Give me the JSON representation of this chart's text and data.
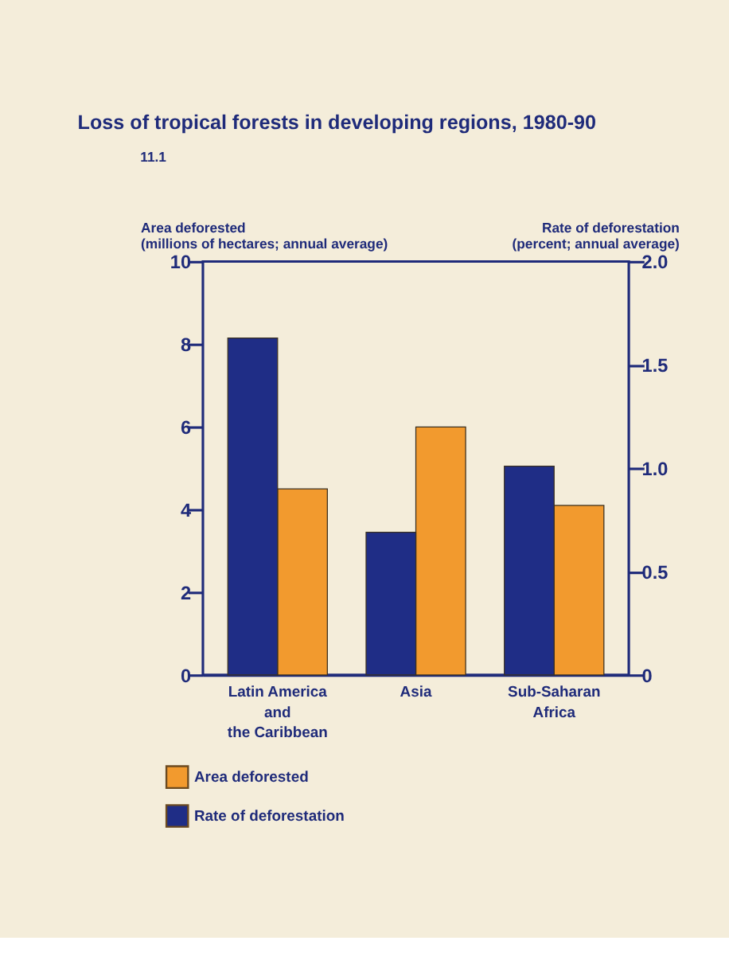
{
  "chart_data": {
    "type": "bar",
    "title": "Loss of tropical forests in developing regions, 1980-90",
    "annotations": [
      "11.1"
    ],
    "ylabel": "Area deforested\n(millions of hectares; annual average)",
    "y2label": "Rate of deforestation\n(percent; annual average)",
    "categories": [
      "Latin America\nand\nthe Caribbean",
      "Asia",
      "Sub-Saharan\nAfrica"
    ],
    "series": [
      {
        "name": "Rate of deforestation",
        "color": "#1f2d86",
        "axis": "y2",
        "values": [
          1.63,
          0.69,
          1.01
        ]
      },
      {
        "name": "Area deforested",
        "color": "#f29a2e",
        "values": [
          4.5,
          6.0,
          4.1
        ]
      }
    ],
    "ylim": [
      0,
      10
    ],
    "yticks": [
      0,
      2,
      4,
      6,
      8,
      10
    ],
    "y2lim": [
      0,
      2
    ],
    "y2ticks": [
      0,
      0.5,
      {
        "value": 1,
        "label": "1.0"
      },
      1.5,
      {
        "value": 2,
        "label": "2.0"
      }
    ],
    "grid": false,
    "legend": "bottom left"
  }
}
